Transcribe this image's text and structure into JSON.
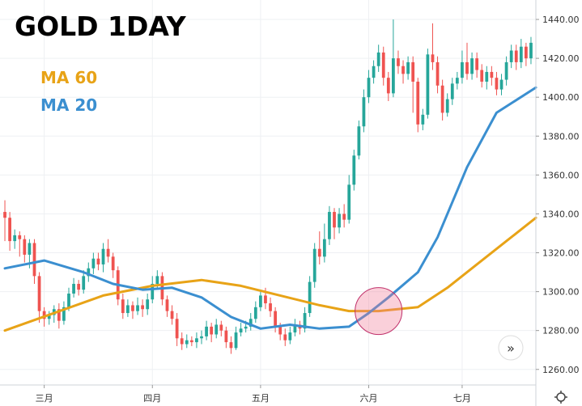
{
  "chart_data": {
    "type": "candlestick",
    "title": "GOLD 1DAY",
    "legend": [
      {
        "name": "MA 60",
        "color": "#e8a317"
      },
      {
        "name": "MA 20",
        "color": "#3b8fd0"
      }
    ],
    "y_ticks": [
      1260,
      1280,
      1300,
      1320,
      1340,
      1360,
      1380,
      1400,
      1420,
      1440
    ],
    "y_tick_labels": [
      "1260.00",
      "1280.00",
      "1300.00",
      "1320.00",
      "1340.00",
      "1360.00",
      "1380.00",
      "1400.00",
      "1420.00",
      "1440.00"
    ],
    "ylim": [
      1252,
      1450
    ],
    "x_tick_labels": [
      "三月",
      "四月",
      "五月",
      "六月",
      "七月"
    ],
    "x_tick_index": [
      8,
      30,
      52,
      74,
      93
    ],
    "ma60": [
      [
        0,
        1280
      ],
      [
        10,
        1289
      ],
      [
        20,
        1298
      ],
      [
        30,
        1303
      ],
      [
        40,
        1306
      ],
      [
        48,
        1303
      ],
      [
        56,
        1298
      ],
      [
        64,
        1293
      ],
      [
        70,
        1290
      ],
      [
        76,
        1290
      ],
      [
        84,
        1292
      ],
      [
        90,
        1302
      ],
      [
        96,
        1314
      ],
      [
        102,
        1326
      ],
      [
        108,
        1338
      ]
    ],
    "ma20": [
      [
        0,
        1312
      ],
      [
        8,
        1316
      ],
      [
        16,
        1310
      ],
      [
        22,
        1304
      ],
      [
        28,
        1301
      ],
      [
        34,
        1302
      ],
      [
        40,
        1297
      ],
      [
        46,
        1287
      ],
      [
        52,
        1281
      ],
      [
        58,
        1283
      ],
      [
        64,
        1281
      ],
      [
        70,
        1282
      ],
      [
        74,
        1289
      ],
      [
        78,
        1297
      ],
      [
        84,
        1310
      ],
      [
        88,
        1328
      ],
      [
        94,
        1364
      ],
      [
        100,
        1392
      ],
      [
        108,
        1405
      ]
    ],
    "candles": [
      [
        1341,
        1338,
        1347,
        1326
      ],
      [
        1338,
        1326,
        1341,
        1321
      ],
      [
        1326,
        1329,
        1332,
        1322
      ],
      [
        1329,
        1327,
        1331,
        1318
      ],
      [
        1327,
        1319,
        1329,
        1315
      ],
      [
        1319,
        1325,
        1327,
        1312
      ],
      [
        1325,
        1308,
        1327,
        1304
      ],
      [
        1308,
        1290,
        1310,
        1284
      ],
      [
        1290,
        1286,
        1292,
        1282
      ],
      [
        1286,
        1288,
        1290,
        1283
      ],
      [
        1288,
        1291,
        1293,
        1284
      ],
      [
        1291,
        1285,
        1294,
        1281
      ],
      [
        1285,
        1292,
        1295,
        1283
      ],
      [
        1292,
        1299,
        1302,
        1290
      ],
      [
        1299,
        1304,
        1307,
        1297
      ],
      [
        1304,
        1301,
        1306,
        1298
      ],
      [
        1301,
        1308,
        1311,
        1299
      ],
      [
        1308,
        1312,
        1315,
        1305
      ],
      [
        1312,
        1317,
        1320,
        1309
      ],
      [
        1317,
        1314,
        1320,
        1311
      ],
      [
        1314,
        1322,
        1325,
        1310
      ],
      [
        1322,
        1318,
        1327,
        1315
      ],
      [
        1318,
        1311,
        1320,
        1307
      ],
      [
        1311,
        1296,
        1313,
        1293
      ],
      [
        1296,
        1289,
        1299,
        1286
      ],
      [
        1289,
        1293,
        1296,
        1287
      ],
      [
        1293,
        1290,
        1295,
        1286
      ],
      [
        1290,
        1293,
        1297,
        1288
      ],
      [
        1293,
        1291,
        1296,
        1287
      ],
      [
        1291,
        1296,
        1299,
        1288
      ],
      [
        1296,
        1304,
        1308,
        1294
      ],
      [
        1304,
        1308,
        1311,
        1301
      ],
      [
        1308,
        1296,
        1310,
        1293
      ],
      [
        1296,
        1290,
        1298,
        1287
      ],
      [
        1290,
        1286,
        1293,
        1283
      ],
      [
        1286,
        1276,
        1289,
        1272
      ],
      [
        1276,
        1273,
        1279,
        1270
      ],
      [
        1273,
        1275,
        1278,
        1271
      ],
      [
        1275,
        1274,
        1277,
        1272
      ],
      [
        1274,
        1276,
        1279,
        1271
      ],
      [
        1276,
        1277,
        1280,
        1273
      ],
      [
        1277,
        1282,
        1285,
        1275
      ],
      [
        1282,
        1278,
        1284,
        1274
      ],
      [
        1278,
        1283,
        1286,
        1276
      ],
      [
        1283,
        1280,
        1285,
        1277
      ],
      [
        1280,
        1274,
        1282,
        1271
      ],
      [
        1274,
        1271,
        1277,
        1268
      ],
      [
        1271,
        1279,
        1282,
        1270
      ],
      [
        1279,
        1281,
        1284,
        1277
      ],
      [
        1281,
        1282,
        1285,
        1279
      ],
      [
        1282,
        1286,
        1289,
        1280
      ],
      [
        1286,
        1292,
        1295,
        1284
      ],
      [
        1292,
        1298,
        1301,
        1290
      ],
      [
        1298,
        1294,
        1302,
        1291
      ],
      [
        1294,
        1290,
        1297,
        1287
      ],
      [
        1290,
        1282,
        1292,
        1279
      ],
      [
        1282,
        1278,
        1284,
        1275
      ],
      [
        1278,
        1275,
        1281,
        1272
      ],
      [
        1275,
        1279,
        1282,
        1273
      ],
      [
        1279,
        1283,
        1286,
        1277
      ],
      [
        1283,
        1281,
        1285,
        1278
      ],
      [
        1281,
        1289,
        1292,
        1279
      ],
      [
        1289,
        1305,
        1308,
        1287
      ],
      [
        1305,
        1322,
        1325,
        1302
      ],
      [
        1322,
        1318,
        1331,
        1314
      ],
      [
        1318,
        1327,
        1335,
        1315
      ],
      [
        1327,
        1341,
        1344,
        1324
      ],
      [
        1341,
        1333,
        1343,
        1327
      ],
      [
        1333,
        1340,
        1343,
        1330
      ],
      [
        1340,
        1337,
        1345,
        1333
      ],
      [
        1337,
        1355,
        1360,
        1335
      ],
      [
        1355,
        1370,
        1373,
        1352
      ],
      [
        1370,
        1385,
        1388,
        1368
      ],
      [
        1385,
        1400,
        1404,
        1382
      ],
      [
        1400,
        1410,
        1414,
        1397
      ],
      [
        1410,
        1416,
        1419,
        1407
      ],
      [
        1416,
        1423,
        1427,
        1413
      ],
      [
        1423,
        1410,
        1426,
        1406
      ],
      [
        1410,
        1402,
        1413,
        1398
      ],
      [
        1402,
        1420,
        1440,
        1400
      ],
      [
        1420,
        1416,
        1424,
        1412
      ],
      [
        1416,
        1412,
        1419,
        1407
      ],
      [
        1412,
        1418,
        1421,
        1409
      ],
      [
        1418,
        1408,
        1421,
        1392
      ],
      [
        1408,
        1386,
        1410,
        1382
      ],
      [
        1386,
        1391,
        1394,
        1383
      ],
      [
        1391,
        1422,
        1425,
        1389
      ],
      [
        1422,
        1418,
        1438,
        1414
      ],
      [
        1418,
        1406,
        1421,
        1402
      ],
      [
        1406,
        1392,
        1409,
        1388
      ],
      [
        1392,
        1399,
        1402,
        1390
      ],
      [
        1399,
        1407,
        1410,
        1396
      ],
      [
        1407,
        1410,
        1413,
        1404
      ],
      [
        1410,
        1418,
        1424,
        1407
      ],
      [
        1418,
        1412,
        1428,
        1409
      ],
      [
        1412,
        1420,
        1423,
        1409
      ],
      [
        1420,
        1414,
        1423,
        1410
      ],
      [
        1414,
        1408,
        1417,
        1405
      ],
      [
        1408,
        1413,
        1416,
        1404
      ],
      [
        1413,
        1410,
        1416,
        1406
      ],
      [
        1410,
        1404,
        1413,
        1401
      ],
      [
        1404,
        1409,
        1412,
        1401
      ],
      [
        1409,
        1418,
        1421,
        1406
      ],
      [
        1418,
        1424,
        1427,
        1415
      ],
      [
        1424,
        1418,
        1427,
        1414
      ],
      [
        1418,
        1426,
        1430,
        1415
      ],
      [
        1426,
        1420,
        1428,
        1416
      ],
      [
        1420,
        1428,
        1431,
        1417
      ]
    ],
    "annotation": "circle highlight near 六月 where MA 20 crosses above MA 60"
  },
  "controls": {
    "scroll_right": "»"
  }
}
